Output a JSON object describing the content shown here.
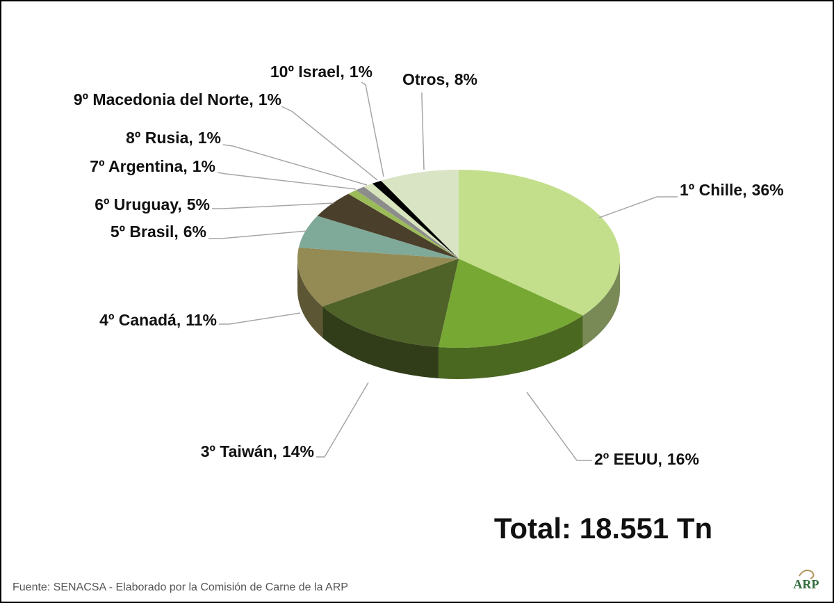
{
  "chart_data": {
    "type": "pie",
    "view": "3d",
    "categories": [
      "1º Chille,",
      "2º EEUU,",
      "3º Taiwán,",
      "4º Canadá,",
      "5º Brasil,",
      "6º Uruguay,",
      "7º Argentina,",
      "8º Rusia,",
      "9º Macedonia del Norte,",
      "10º Israel,",
      "Otros,"
    ],
    "values": [
      36,
      16,
      14,
      11,
      6,
      5,
      1,
      1,
      1,
      1,
      8
    ],
    "value_labels": [
      "36%",
      "16%",
      "14%",
      "11%",
      "6%",
      "5%",
      "1%",
      "1%",
      "1%",
      "1%",
      "8%"
    ],
    "colors": [
      "#c3df8c",
      "#77a833",
      "#4f6228",
      "#948a54",
      "#7fa998",
      "#4a3f2a",
      "#9bbb59",
      "#8c8c8c",
      "#d7e4bc",
      "#000000",
      "#d8e4c4"
    ],
    "total": "Total:  18.551 Tn",
    "source": "Fuente: SENACSA - Elaborado por la Comisión de Carne de la ARP",
    "logo": "ARP"
  }
}
